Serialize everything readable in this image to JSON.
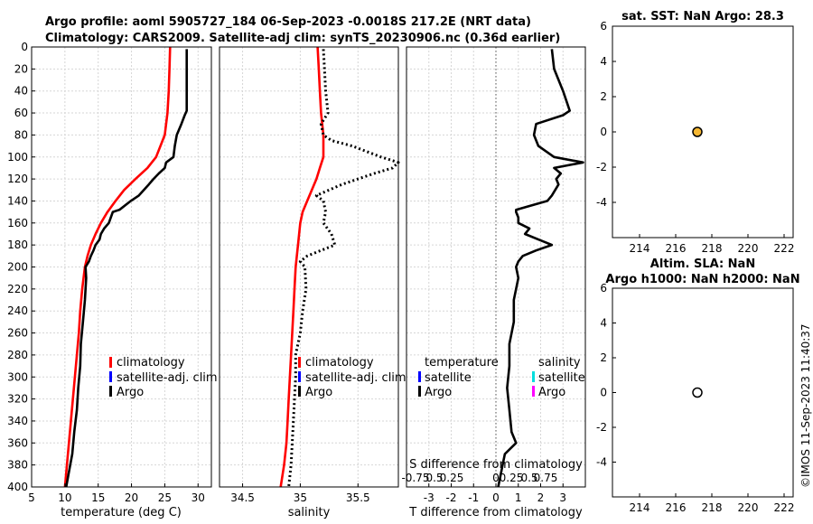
{
  "header": {
    "title_line1": "Argo profile: aoml 5905727_184 06-Sep-2023 -0.0018S 217.2E (NRT data)",
    "title_line2": "Climatology: CARS2009. Satellite-adj clim: synTS_20230906.nc (0.36d earlier)"
  },
  "watermark": "©IMOS 11-Sep-2023 11:40:37",
  "colors": {
    "climatology": "#ff0000",
    "satellite": "#0000ff",
    "argo": "#000000",
    "sat_salinity": "#00dddd",
    "argo_salinity": "#ff00ff",
    "marker_sst": "#f5b733"
  },
  "chart_data": [
    {
      "type": "line",
      "name": "temperature",
      "xlabel": "temperature (deg C)",
      "xlim": [
        5,
        32
      ],
      "xticks": [
        5,
        10,
        15,
        20,
        25,
        30
      ],
      "ylim": [
        400,
        0
      ],
      "yticks": [
        0,
        20,
        40,
        60,
        80,
        100,
        120,
        140,
        160,
        180,
        200,
        220,
        240,
        260,
        280,
        300,
        320,
        340,
        360,
        380,
        400
      ],
      "legend": [
        "climatology",
        "satellite-adj. clim",
        "Argo"
      ],
      "series": [
        {
          "name": "climatology",
          "color": "#ff0000",
          "depth": [
            0,
            20,
            40,
            60,
            80,
            100,
            110,
            120,
            130,
            140,
            150,
            160,
            170,
            180,
            190,
            200,
            220,
            240,
            260,
            280,
            300,
            320,
            340,
            360,
            380,
            400
          ],
          "values": [
            25.8,
            25.7,
            25.6,
            25.4,
            25.0,
            23.7,
            22.4,
            20.6,
            18.9,
            17.6,
            16.4,
            15.4,
            14.6,
            13.9,
            13.4,
            13.0,
            12.6,
            12.3,
            12.1,
            11.8,
            11.5,
            11.2,
            10.9,
            10.6,
            10.3,
            10.0
          ]
        },
        {
          "name": "Argo",
          "color": "#000000",
          "depth": [
            2,
            20,
            40,
            58,
            62,
            70,
            80,
            90,
            100,
            105,
            110,
            115,
            120,
            125,
            135,
            140,
            148,
            150,
            155,
            160,
            165,
            170,
            175,
            180,
            185,
            190,
            195,
            200,
            210,
            230,
            250,
            270,
            290,
            310,
            330,
            350,
            370,
            390,
            400
          ],
          "values": [
            28.3,
            28.3,
            28.3,
            28.3,
            28.0,
            27.5,
            26.8,
            26.5,
            26.3,
            25.2,
            25.0,
            24.1,
            23.3,
            22.6,
            21.1,
            19.9,
            18.2,
            17.2,
            16.9,
            16.6,
            15.9,
            15.4,
            15.2,
            14.6,
            14.3,
            13.9,
            13.6,
            13.1,
            13.2,
            13.0,
            12.7,
            12.4,
            12.3,
            12.0,
            11.8,
            11.4,
            11.1,
            10.5,
            10.2
          ]
        }
      ]
    },
    {
      "type": "line",
      "name": "salinity",
      "xlabel": "salinity",
      "xlim": [
        34.3,
        35.85
      ],
      "xticks": [
        34.5,
        35,
        35.5
      ],
      "ylim": [
        400,
        0
      ],
      "legend": [
        "climatology",
        "satellite-adj. clim",
        "Argo"
      ],
      "series": [
        {
          "name": "climatology",
          "color": "#ff0000",
          "depth": [
            0,
            20,
            40,
            60,
            80,
            100,
            110,
            120,
            130,
            140,
            150,
            160,
            180,
            200,
            220,
            240,
            260,
            280,
            300,
            320,
            340,
            360,
            380,
            400
          ],
          "values": [
            35.15,
            35.16,
            35.17,
            35.18,
            35.2,
            35.2,
            35.17,
            35.14,
            35.1,
            35.06,
            35.02,
            35.0,
            34.98,
            34.96,
            34.95,
            34.94,
            34.93,
            34.92,
            34.91,
            34.9,
            34.89,
            34.88,
            34.86,
            34.83
          ]
        },
        {
          "name": "Argo",
          "color": "#000000",
          "depth": [
            2,
            20,
            40,
            60,
            70,
            80,
            85,
            90,
            100,
            105,
            110,
            115,
            120,
            125,
            135,
            140,
            150,
            160,
            170,
            180,
            190,
            195,
            200,
            220,
            240,
            260,
            280,
            300,
            320,
            340,
            360,
            380,
            400
          ],
          "values": [
            35.2,
            35.21,
            35.22,
            35.24,
            35.18,
            35.2,
            35.27,
            35.45,
            35.7,
            35.85,
            35.8,
            35.64,
            35.5,
            35.36,
            35.14,
            35.2,
            35.22,
            35.2,
            35.27,
            35.3,
            35.06,
            35.0,
            35.04,
            35.05,
            35.02,
            35.0,
            34.96,
            34.96,
            34.95,
            34.94,
            34.93,
            34.92,
            34.9
          ]
        }
      ]
    },
    {
      "type": "line",
      "name": "difference",
      "xlabel": "T difference from climatology",
      "xlabel_top": "S difference from climatology",
      "xlim": [
        -4,
        4
      ],
      "xticks": [
        -3,
        -2,
        -1,
        0,
        1,
        2,
        3
      ],
      "xticks_top": [
        "-0.75",
        "0.5",
        "0.25",
        "0",
        "0.25",
        "0.5",
        "0.75"
      ],
      "ylim": [
        400,
        0
      ],
      "legend_temperature": {
        "title": "temperature",
        "items": [
          "satellite",
          "Argo"
        ]
      },
      "legend_salinity": {
        "title": "salinity",
        "items": [
          "satellite",
          "Argo"
        ]
      },
      "series": [
        {
          "name": "T difference Argo",
          "color": "#000000",
          "depth": [
            2,
            20,
            40,
            58,
            62,
            70,
            80,
            90,
            100,
            105,
            110,
            115,
            120,
            125,
            135,
            140,
            148,
            150,
            155,
            160,
            165,
            170,
            175,
            180,
            185,
            190,
            195,
            200,
            210,
            230,
            250,
            270,
            290,
            310,
            330,
            350,
            360,
            370,
            380,
            390,
            400
          ],
          "values": [
            2.5,
            2.6,
            3.0,
            3.3,
            3.0,
            1.8,
            1.7,
            1.9,
            2.6,
            3.9,
            2.6,
            2.9,
            2.7,
            2.8,
            2.5,
            2.3,
            0.9,
            0.9,
            1.0,
            1.0,
            1.5,
            1.3,
            1.9,
            2.5,
            1.8,
            1.2,
            1.0,
            0.9,
            1.0,
            0.8,
            0.8,
            0.6,
            0.6,
            0.5,
            0.6,
            0.7,
            0.9,
            0.4,
            0.3,
            0.2,
            0.1
          ]
        }
      ]
    },
    {
      "type": "scatter",
      "name": "sst",
      "title": "sat. SST: NaN Argo: 28.3",
      "xlim": [
        212.5,
        222.5
      ],
      "xticks": [
        214,
        216,
        218,
        220,
        222
      ],
      "ylim": [
        -6,
        6
      ],
      "yticks": [
        6,
        4,
        2,
        0,
        -2,
        -4
      ],
      "points": [
        {
          "x": 217.2,
          "y": 0,
          "filled": true
        }
      ]
    },
    {
      "type": "scatter",
      "name": "sla",
      "title_line1": "Altim. SLA: NaN",
      "title_line2": "Argo h1000: NaN h2000: NaN",
      "xlim": [
        212.5,
        222.5
      ],
      "xticks": [
        214,
        216,
        218,
        220,
        222
      ],
      "ylim": [
        -6,
        6
      ],
      "yticks": [
        6,
        4,
        2,
        0,
        -2,
        -4
      ],
      "points": [
        {
          "x": 217.2,
          "y": 0,
          "filled": false
        }
      ]
    }
  ]
}
